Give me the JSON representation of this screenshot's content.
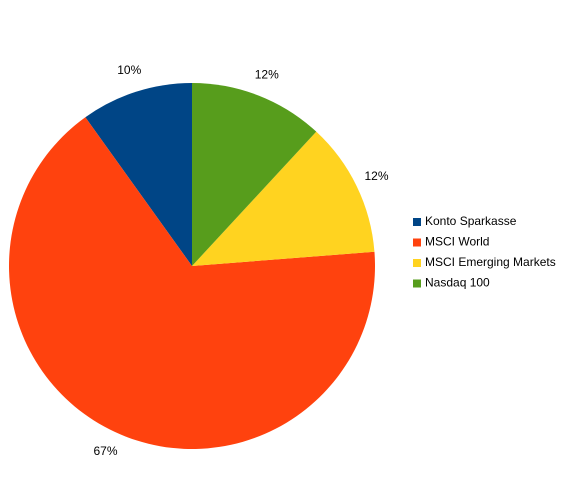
{
  "chart_data": {
    "type": "pie",
    "categories": [
      "Konto Sparkasse",
      "MSCI World",
      "MSCI Emerging Markets",
      "Nasdaq 100"
    ],
    "values": [
      10,
      67,
      12,
      12
    ],
    "value_labels": [
      "10%",
      "67%",
      "12%",
      "12%"
    ],
    "colors": [
      "#004586",
      "#ff420e",
      "#ffd320",
      "#579d1c"
    ],
    "legend": "right"
  }
}
